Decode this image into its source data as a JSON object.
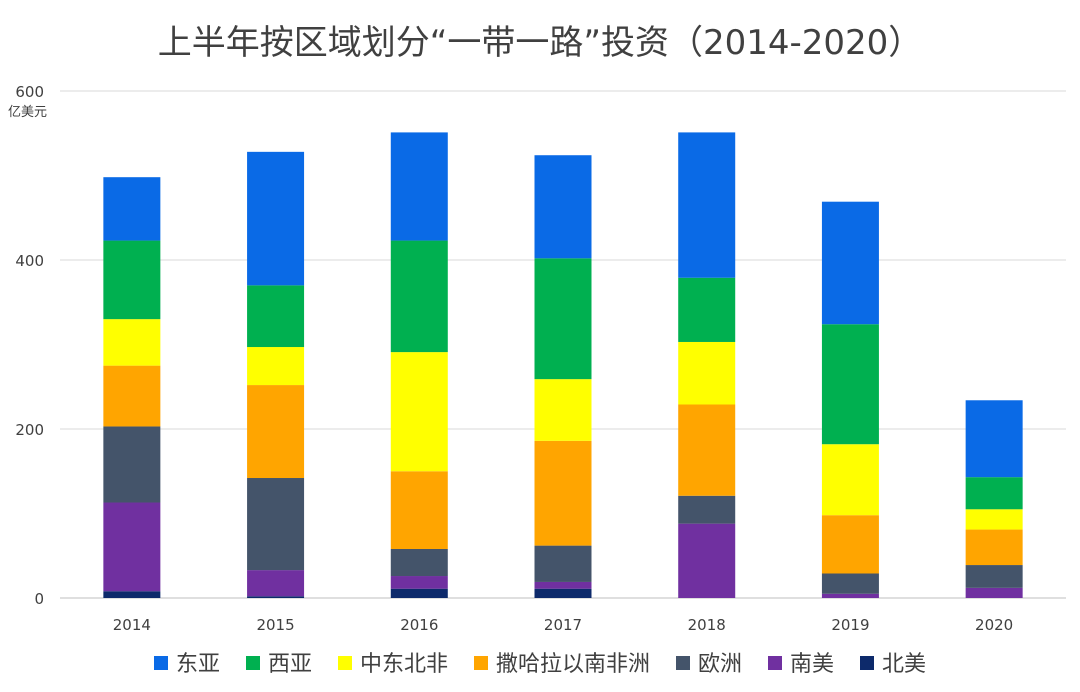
{
  "chart_data": {
    "type": "bar",
    "stacked": true,
    "title": "上半年按区域划分“一带一路”投资（2014-2020）",
    "ylabel": "亿美元",
    "ylim": [
      0,
      600
    ],
    "yticks": [
      "0",
      "200",
      "400",
      "600"
    ],
    "grid": true,
    "legend_position": "bottom",
    "categories": [
      "2014",
      "2015",
      "2016",
      "2017",
      "2018",
      "2019",
      "2020"
    ],
    "series": [
      {
        "name": "北美",
        "color": "#0d2a6b",
        "values": [
          8,
          2,
          11,
          11,
          0,
          0,
          0
        ]
      },
      {
        "name": "南美",
        "color": "#7030a0",
        "values": [
          105,
          31,
          15,
          8,
          88,
          5,
          12
        ]
      },
      {
        "name": "欧洲",
        "color": "#44546a",
        "values": [
          90,
          109,
          32,
          43,
          33,
          24,
          27
        ]
      },
      {
        "name": "撒哈拉以南非洲",
        "color": "#ffa500",
        "values": [
          72,
          110,
          92,
          124,
          108,
          69,
          42
        ]
      },
      {
        "name": "中东北非",
        "color": "#ffff00",
        "values": [
          55,
          45,
          141,
          73,
          74,
          84,
          24
        ]
      },
      {
        "name": "西亚",
        "color": "#00b050",
        "values": [
          93,
          73,
          132,
          143,
          76,
          142,
          38
        ]
      },
      {
        "name": "东亚",
        "color": "#0a6ae6",
        "values": [
          75,
          158,
          128,
          122,
          172,
          145,
          91
        ]
      }
    ],
    "legend_order": [
      "东亚",
      "西亚",
      "中东北非",
      "撒哈拉以南非洲",
      "欧洲",
      "南美",
      "北美"
    ]
  }
}
